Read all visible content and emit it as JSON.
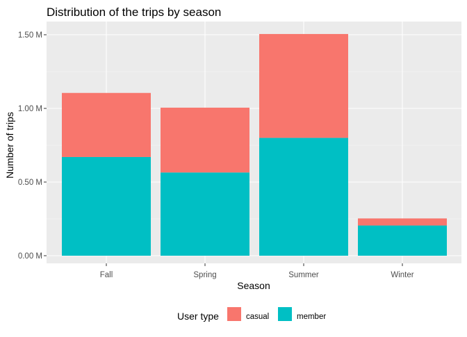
{
  "chart_data": {
    "type": "bar",
    "stacked": true,
    "title": "Distribution of the trips by season",
    "xlabel": "Season",
    "ylabel": "Number of trips",
    "categories": [
      "Fall",
      "Spring",
      "Summer",
      "Winter"
    ],
    "series": [
      {
        "name": "member",
        "values": [
          670000,
          565000,
          800000,
          205000
        ],
        "color": "#00BFC4"
      },
      {
        "name": "casual",
        "values": [
          435000,
          440000,
          705000,
          48000
        ],
        "color": "#F8766D"
      }
    ],
    "ylim": [
      0,
      1580000
    ],
    "yticks": [
      {
        "value": 0,
        "label": "0.00 M"
      },
      {
        "value": 500000,
        "label": "0.50 M"
      },
      {
        "value": 1000000,
        "label": "1.00 M"
      },
      {
        "value": 1500000,
        "label": "1.50 M"
      }
    ],
    "yminor": [
      250000,
      750000,
      1250000
    ],
    "grid": true,
    "legend": {
      "title": "User type",
      "position": "bottom",
      "entries": [
        {
          "label": "casual",
          "color": "#F8766D"
        },
        {
          "label": "member",
          "color": "#00BFC4"
        }
      ]
    },
    "colors": {
      "panel_background": "#EBEBEB",
      "grid_major": "#FFFFFF",
      "grid_minor": "#F5F5F5"
    }
  }
}
